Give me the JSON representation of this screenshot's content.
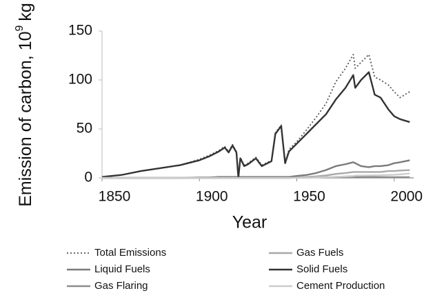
{
  "chart_data": {
    "type": "line",
    "y_label": "Emission of carbon, 10",
    "y_label_exponent": "9",
    "y_label_unit": "kg",
    "x_label": "Year",
    "x": [
      1850,
      1860,
      1870,
      1880,
      1890,
      1900,
      1905,
      1910,
      1913,
      1915,
      1917,
      1919,
      1920,
      1921,
      1923,
      1925,
      1929,
      1932,
      1937,
      1939,
      1942,
      1944,
      1946,
      1950,
      1955,
      1960,
      1965,
      1970,
      1975,
      1979,
      1980,
      1983,
      1987,
      1990,
      1993,
      1997,
      2000,
      2003,
      2008
    ],
    "xlim": [
      1850,
      2010
    ],
    "xticks": [
      1850,
      1900,
      1950,
      2000
    ],
    "ylim": [
      0,
      150
    ],
    "yticks": [
      0,
      50,
      100,
      150
    ],
    "grid": false,
    "legend": "bottom",
    "series": [
      {
        "name": "Total Emissions",
        "color": "#555555",
        "line_style": "dotted",
        "values": [
          1,
          3,
          7,
          10,
          13,
          19,
          23,
          28,
          32,
          27,
          34,
          27,
          1,
          21,
          13,
          15,
          21,
          13,
          18,
          46,
          54,
          16,
          29,
          37,
          49,
          62,
          76,
          98,
          112,
          126,
          112,
          118,
          126,
          103,
          100,
          95,
          88,
          82,
          88
        ]
      },
      {
        "name": "Gas Fuels",
        "color": "#a8a8a8",
        "line_style": "solid",
        "values": [
          0,
          0,
          0,
          0,
          0,
          0,
          0,
          0,
          0,
          0,
          0,
          0,
          0,
          0,
          0,
          0,
          0,
          0,
          0,
          0,
          0,
          0,
          0,
          0.5,
          1,
          1.5,
          2.5,
          4,
          5,
          6,
          6,
          6,
          6,
          6,
          6,
          7,
          7,
          7.5,
          8
        ]
      },
      {
        "name": "Liquid Fuels",
        "color": "#7a7a7a",
        "line_style": "solid",
        "values": [
          0,
          0,
          0,
          0,
          0,
          0.5,
          0.5,
          1,
          1,
          1,
          1,
          1,
          1,
          1,
          1,
          1,
          1,
          1,
          1,
          1,
          1,
          1,
          1,
          2,
          3,
          5,
          8,
          12,
          14,
          16,
          15,
          12,
          11,
          12,
          12,
          13,
          15,
          16,
          18
        ]
      },
      {
        "name": "Solid Fuels",
        "color": "#333333",
        "line_style": "solid",
        "values": [
          1,
          3,
          7,
          10,
          13,
          18,
          22,
          27,
          31,
          26,
          33,
          26,
          0,
          20,
          12,
          14,
          20,
          12,
          17,
          45,
          53,
          15,
          27,
          35,
          45,
          55,
          65,
          80,
          92,
          105,
          92,
          100,
          108,
          85,
          82,
          70,
          63,
          60,
          57
        ]
      },
      {
        "name": "Gas Flaring",
        "color": "#8c8c8c",
        "line_style": "solid",
        "values": [
          0,
          0,
          0,
          0,
          0,
          0,
          0,
          0,
          0,
          0,
          0,
          0,
          0,
          0,
          0,
          0,
          0,
          0,
          0,
          0,
          0,
          0,
          0,
          0.2,
          0.3,
          0.5,
          0.7,
          1,
          1.2,
          1.3,
          1.2,
          1,
          1,
          0.8,
          0.8,
          0.7,
          0.7,
          0.7,
          0.7
        ]
      },
      {
        "name": "Cement Production",
        "color": "#cccccc",
        "line_style": "solid",
        "values": [
          0,
          0,
          0,
          0,
          0,
          0,
          0,
          0,
          0,
          0,
          0,
          0,
          0,
          0,
          0,
          0,
          0,
          0,
          0,
          0,
          0,
          0,
          0,
          0.2,
          0.3,
          0.5,
          0.8,
          1,
          1.5,
          2,
          2.3,
          2.4,
          2.5,
          2.6,
          2.7,
          3,
          3.2,
          3.6,
          4.5
        ]
      }
    ]
  }
}
